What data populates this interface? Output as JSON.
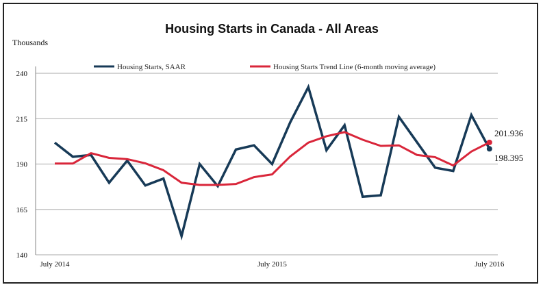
{
  "chart_data": {
    "type": "line",
    "title": "Housing Starts in Canada - All Areas",
    "ylabel": "Thousands",
    "xlabel": "",
    "ylim": [
      140,
      240
    ],
    "yticks": [
      140,
      165,
      190,
      215,
      240
    ],
    "x_tick_labels": [
      {
        "index": 0,
        "label": "July 2014"
      },
      {
        "index": 12,
        "label": "July 2015"
      },
      {
        "index": 24,
        "label": "July 2016"
      }
    ],
    "grid": true,
    "legend_position": "top",
    "series": [
      {
        "name": "Housing Starts, SAAR",
        "color": "#173a57",
        "values": [
          201.8,
          194,
          195,
          179.7,
          191.9,
          178.2,
          182,
          150.3,
          190,
          177.8,
          198,
          200.3,
          190,
          213,
          232.4,
          197.6,
          211.4,
          172,
          172.8,
          216,
          202,
          188,
          186.2,
          217,
          198.395
        ]
      },
      {
        "name": "Housing Starts Trend Line (6-month moving average)",
        "color": "#d9263a",
        "values": [
          190.3,
          190.3,
          196,
          193.4,
          192.7,
          190.4,
          186.6,
          179.7,
          178.5,
          178.5,
          179,
          182.8,
          184.3,
          194.2,
          201.8,
          205.3,
          207.6,
          203.4,
          200,
          200.3,
          195,
          193.8,
          189.2,
          196.9,
          201.936
        ]
      }
    ],
    "annotations": [
      "201.936",
      "198.395"
    ]
  }
}
